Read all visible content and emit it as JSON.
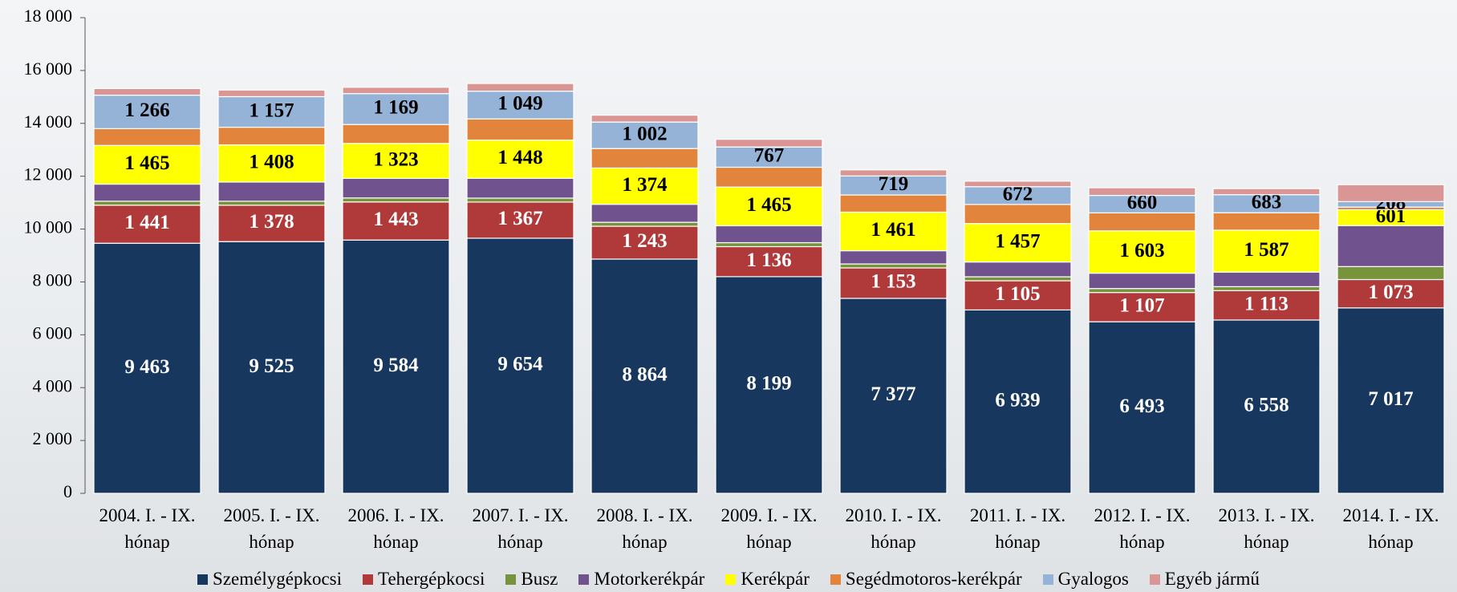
{
  "chart_data": {
    "type": "stacked_bar",
    "categories": [
      "2004. I. - IX. hónap",
      "2005. I. - IX. hónap",
      "2006. I. - IX. hónap",
      "2007. I. - IX. hónap",
      "2008. I. - IX. hónap",
      "2009. I. - IX. hónap",
      "2010. I. - IX. hónap",
      "2011. I. - IX. hónap",
      "2012. I. - IX. hónap",
      "2013. I. - IX. hónap",
      "2014. I. - IX. hónap"
    ],
    "series": [
      {
        "name": "Személygépkocsi",
        "color": "#17375e",
        "values": [
          9463,
          9525,
          9584,
          9654,
          8864,
          8199,
          7377,
          6939,
          6493,
          6558,
          7017
        ],
        "value_labels": [
          "9 463",
          "9 525",
          "9 584",
          "9 654",
          "8 864",
          "8 199",
          "7 377",
          "6 939",
          "6 493",
          "6 558",
          "7 017"
        ]
      },
      {
        "name": "Tehergépkocsi",
        "color": "#b0393a",
        "values": [
          1441,
          1378,
          1443,
          1367,
          1243,
          1136,
          1153,
          1105,
          1107,
          1113,
          1073
        ],
        "value_labels": [
          "1 441",
          "1 378",
          "1 443",
          "1 367",
          "1 243",
          "1 136",
          "1 153",
          "1 105",
          "1 107",
          "1 113",
          "1 073"
        ]
      },
      {
        "name": "Busz",
        "color": "#77933c",
        "values": [
          150,
          150,
          150,
          150,
          150,
          150,
          150,
          150,
          150,
          150,
          490
        ]
      },
      {
        "name": "Motorkerékpár",
        "color": "#70528f",
        "values": [
          646,
          726,
          740,
          750,
          680,
          640,
          500,
          560,
          580,
          550,
          1550
        ]
      },
      {
        "name": "Kerékpár",
        "color": "#ffff00",
        "values": [
          1465,
          1408,
          1323,
          1448,
          1374,
          1465,
          1461,
          1457,
          1603,
          1587,
          601
        ],
        "value_labels": [
          "1 465",
          "1 408",
          "1 323",
          "1 448",
          "1 374",
          "1 465",
          "1 461",
          "1 457",
          "1 603",
          "1 587",
          "601"
        ]
      },
      {
        "name": "Segédmotoros-kerékpár",
        "color": "#e3843c",
        "values": [
          635,
          667,
          717,
          800,
          736,
          750,
          650,
          720,
          680,
          660,
          100
        ]
      },
      {
        "name": "Gyalogos",
        "color": "#95b3d7",
        "values": [
          1266,
          1157,
          1169,
          1049,
          1002,
          767,
          719,
          672,
          660,
          683,
          208
        ],
        "value_labels": [
          "1 266",
          "1 157",
          "1 169",
          "1 049",
          "1 002",
          "767",
          "719",
          "672",
          "660",
          "683",
          "208"
        ]
      },
      {
        "name": "Egyéb jármű",
        "color": "#d99694",
        "values": [
          250,
          250,
          240,
          290,
          260,
          290,
          230,
          210,
          290,
          230,
          640
        ]
      }
    ],
    "ylim": [
      0,
      18000
    ],
    "yticks": [
      0,
      {
        "value": 2000,
        "label": "2 000"
      },
      {
        "value": 4000,
        "label": "4 000"
      },
      {
        "value": 6000,
        "label": "6 000"
      },
      {
        "value": 8000,
        "label": "8 000"
      },
      {
        "value": 10000,
        "label": "10 000"
      },
      {
        "value": 12000,
        "label": "12 000"
      },
      {
        "value": 14000,
        "label": "14 000"
      },
      {
        "value": 16000,
        "label": "16 000"
      },
      {
        "value": 18000,
        "label": "18 000"
      }
    ],
    "grid": false,
    "legend": "bottom"
  }
}
